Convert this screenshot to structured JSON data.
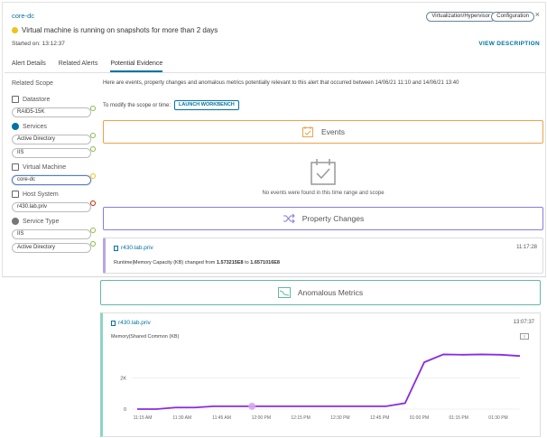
{
  "header": {
    "object_name": "core-dc",
    "chip_type": "Virtualization/Hypervisor",
    "chip_category": "Configuration",
    "close_glyph": "×",
    "alert_message": "Virtual machine is running on snapshots for more than 2 days",
    "started_on": "Started on: 13:12:37",
    "view_description": "VIEW DESCRIPTION"
  },
  "tabs": [
    {
      "label": "Alert Details",
      "active": false
    },
    {
      "label": "Related Alerts",
      "active": false
    },
    {
      "label": "Potential Evidence",
      "active": true
    }
  ],
  "sidebar": {
    "title": "Related Scope",
    "groups": [
      {
        "label": "Datastore",
        "icon": "datastore-icon",
        "items": [
          "RAID5-15K"
        ]
      },
      {
        "label": "Services",
        "icon": "services-icon",
        "items": [
          "Active Directory",
          "IIS"
        ]
      },
      {
        "label": "Virtual Machine",
        "icon": "vm-icon",
        "items": [
          "core-dc"
        ]
      },
      {
        "label": "Host System",
        "icon": "host-icon",
        "items": [
          "r430.lab.priv"
        ]
      },
      {
        "label": "Service Type",
        "icon": "service-type-icon",
        "items": [
          "IIS",
          "Active Directory"
        ]
      }
    ]
  },
  "content": {
    "intro": "Here are events, property changes and anomalous metrics potentially relevant to this alert that occurred between 14/06/21 11:10 and 14/06/21 13:40",
    "scope_text": "To modify the scope or time:",
    "workbench_button": "LAUNCH WORKBENCH",
    "events_title": "Events",
    "events_empty": "No events were found in this time range and scope",
    "property_title": "Property Changes",
    "property_card": {
      "host": "r430.lab.priv",
      "time": "11:17:28",
      "prefix": "Runtime|Memory Capacity (KB) changed from",
      "from": "1.573215E8",
      "mid": "to",
      "to": "1.6571016E8"
    },
    "anomalous_title": "Anomalous Metrics",
    "metric_card": {
      "host": "r430.lab.priv",
      "time": "13:07:37",
      "metric": "Memory|Shared Common (KB)"
    }
  },
  "colors": {
    "events": "#f0a24a",
    "property": "#8e7ae0",
    "anomalous": "#62b8a8",
    "link": "#0072a3",
    "line": "#8a2be2"
  },
  "chart_data": {
    "type": "line",
    "x_ticks": [
      "11:15 AM",
      "11:30 AM",
      "11:45 AM",
      "12:00 PM",
      "12:15 PM",
      "12:30 PM",
      "12:45 PM",
      "01:00 PM",
      "01:15 PM",
      "01:30 PM"
    ],
    "y_ticks": [
      "2K",
      "0"
    ],
    "ylim": [
      0,
      3700
    ],
    "x": [
      0,
      1,
      2,
      3,
      4,
      5,
      6,
      7,
      8,
      9,
      10,
      11,
      12,
      13,
      14,
      15,
      16,
      17,
      18,
      19,
      20
    ],
    "values": [
      0,
      0,
      100,
      100,
      180,
      180,
      180,
      180,
      180,
      180,
      180,
      180,
      180,
      180,
      380,
      3000,
      3500,
      3480,
      3500,
      3480,
      3400
    ],
    "highlight_index": 6
  }
}
